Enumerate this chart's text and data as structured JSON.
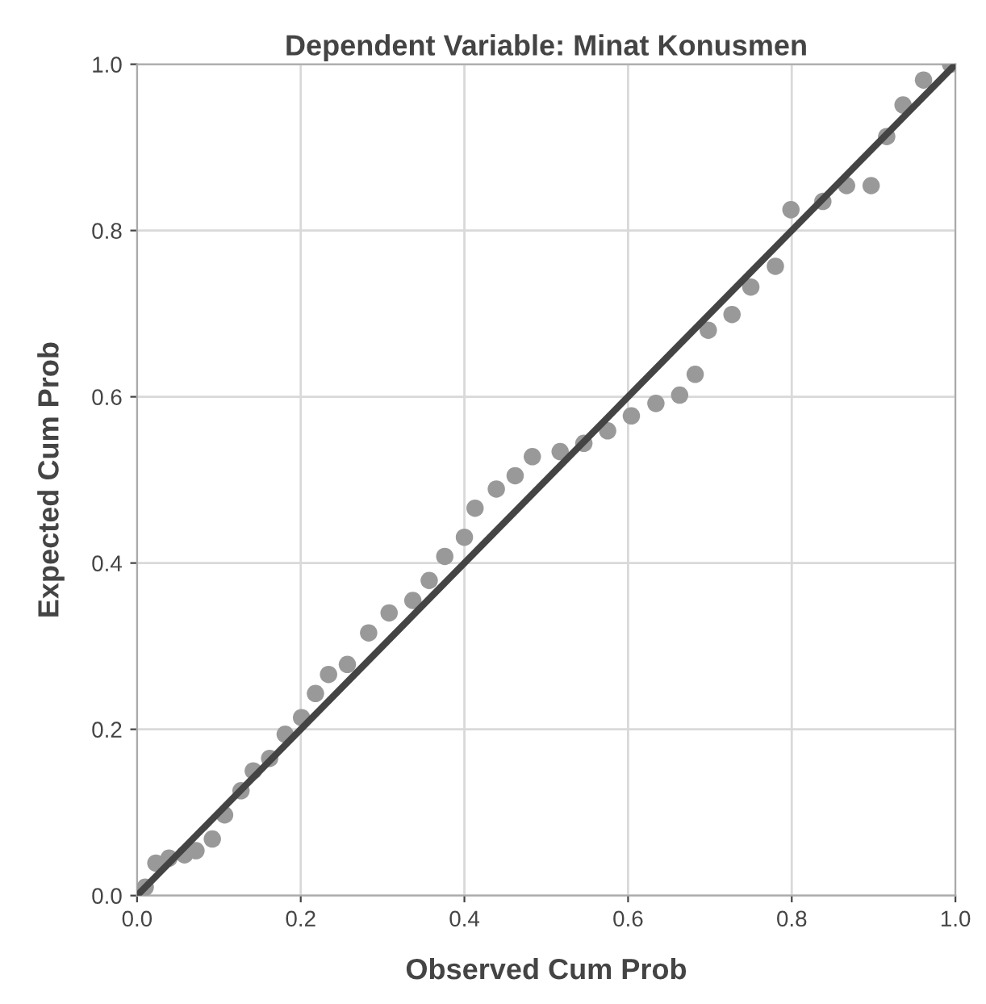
{
  "chart_data": {
    "type": "scatter",
    "title": "Dependent Variable: Minat Konusmen",
    "xlabel": "Observed Cum Prob",
    "ylabel": "Expected Cum Prob",
    "series": [
      {
        "color": "#999999",
        "marker": "circle",
        "x": [
          0.01,
          0.023,
          0.039,
          0.058,
          0.072,
          0.092,
          0.107,
          0.127,
          0.142,
          0.162,
          0.181,
          0.201,
          0.218,
          0.234,
          0.257,
          0.283,
          0.308,
          0.337,
          0.357,
          0.376,
          0.4,
          0.413,
          0.439,
          0.462,
          0.483,
          0.517,
          0.546,
          0.575,
          0.604,
          0.634,
          0.663,
          0.682,
          0.698,
          0.727,
          0.75,
          0.78,
          0.799,
          0.838,
          0.867,
          0.897,
          0.916,
          0.936,
          0.961,
          0.994
        ],
        "values": [
          0.01,
          0.039,
          0.045,
          0.049,
          0.054,
          0.068,
          0.097,
          0.126,
          0.15,
          0.165,
          0.194,
          0.214,
          0.243,
          0.266,
          0.278,
          0.316,
          0.34,
          0.355,
          0.379,
          0.408,
          0.431,
          0.466,
          0.489,
          0.505,
          0.528,
          0.534,
          0.544,
          0.559,
          0.577,
          0.592,
          0.602,
          0.627,
          0.68,
          0.699,
          0.732,
          0.757,
          0.825,
          0.835,
          0.854,
          0.854,
          0.913,
          0.951,
          0.981,
          1.0
        ]
      },
      {
        "type": "line",
        "color": "#444444",
        "line_style": "solid",
        "x": [
          0,
          1
        ],
        "values": [
          0,
          1
        ]
      }
    ],
    "xlim": [
      0,
      1
    ],
    "ylim": [
      0,
      1
    ],
    "xticks": [
      {
        "value": 0,
        "label": "0.0"
      },
      {
        "value": 0.2,
        "label": "0.2"
      },
      {
        "value": 0.4,
        "label": "0.4"
      },
      {
        "value": 0.6,
        "label": "0.6"
      },
      {
        "value": 0.8,
        "label": "0.8"
      },
      {
        "value": 1,
        "label": "1.0"
      }
    ],
    "yticks": [
      {
        "value": 0,
        "label": "0.0"
      },
      {
        "value": 0.2,
        "label": "0.2"
      },
      {
        "value": 0.4,
        "label": "0.4"
      },
      {
        "value": 0.6,
        "label": "0.6"
      },
      {
        "value": 0.8,
        "label": "0.8"
      },
      {
        "value": 1,
        "label": "1.0"
      }
    ],
    "grid": true
  }
}
